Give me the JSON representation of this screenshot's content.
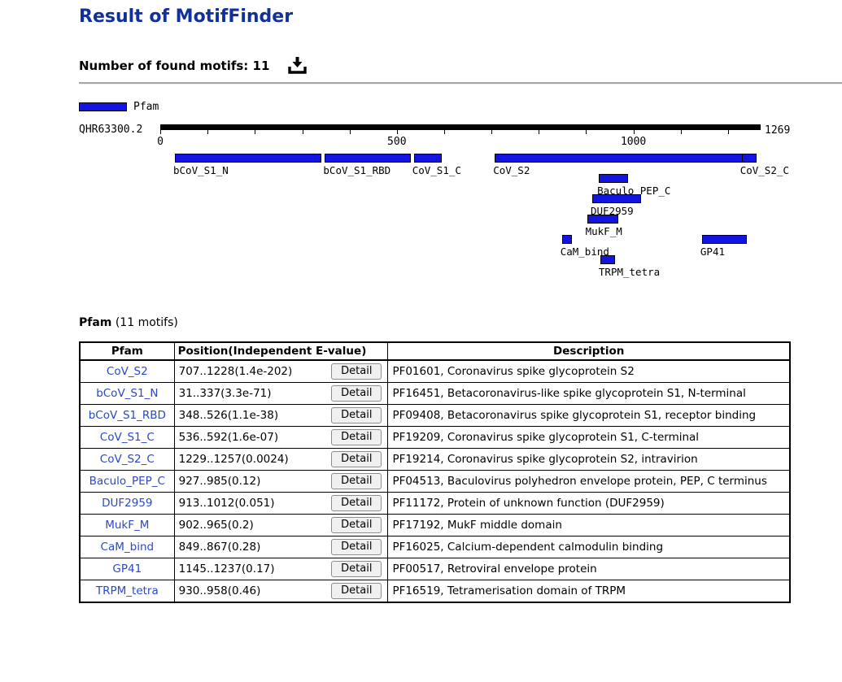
{
  "page": {
    "title": "Result of MotifFinder",
    "found_motifs_label": "Number of found motifs: 11"
  },
  "legend": {
    "label": "Pfam"
  },
  "diagram": {
    "sequence_name": "QHR63300.2",
    "sequence_length": 1269,
    "tick_interval": 100,
    "axis_labels": [
      {
        "value": 0,
        "text": "0"
      },
      {
        "value": 500,
        "text": "500"
      },
      {
        "value": 1000,
        "text": "1000"
      }
    ],
    "end_label": "1269",
    "bar_color": "#1414e0",
    "motifs": [
      {
        "label": "bCoV_S1_N",
        "start": 31,
        "end": 337,
        "row": 0
      },
      {
        "label": "bCoV_S1_RBD",
        "start": 348,
        "end": 526,
        "row": 0
      },
      {
        "label": "CoV_S1_C",
        "start": 536,
        "end": 592,
        "row": 0
      },
      {
        "label": "CoV_S2",
        "start": 707,
        "end": 1228,
        "row": 0
      },
      {
        "label": "CoV_S2_C",
        "start": 1229,
        "end": 1257,
        "row": 0
      },
      {
        "label": "Baculo_PEP_C",
        "start": 927,
        "end": 985,
        "row": 1
      },
      {
        "label": "DUF2959",
        "start": 913,
        "end": 1012,
        "row": 2
      },
      {
        "label": "MukF_M",
        "start": 902,
        "end": 965,
        "row": 3
      },
      {
        "label": "CaM_bind",
        "start": 849,
        "end": 867,
        "row": 4
      },
      {
        "label": "GP41",
        "start": 1145,
        "end": 1237,
        "row": 4
      },
      {
        "label": "TRPM_tetra",
        "start": 930,
        "end": 958,
        "row": 5
      }
    ]
  },
  "section": {
    "title": "Pfam",
    "subtitle": "(11 motifs)"
  },
  "table": {
    "headers": [
      "Pfam",
      "Position(Independent E-value)",
      "Description"
    ],
    "detail_label": "Detail",
    "rows": [
      {
        "pfam": "CoV_S2",
        "position": "707..1228(1.4e-202)",
        "description": "PF01601, Coronavirus spike glycoprotein S2"
      },
      {
        "pfam": "bCoV_S1_N",
        "position": "31..337(3.3e-71)",
        "description": "PF16451, Betacoronavirus-like spike glycoprotein S1, N-terminal"
      },
      {
        "pfam": "bCoV_S1_RBD",
        "position": "348..526(1.1e-38)",
        "description": "PF09408, Betacoronavirus spike glycoprotein S1, receptor binding"
      },
      {
        "pfam": "CoV_S1_C",
        "position": "536..592(1.6e-07)",
        "description": "PF19209, Coronavirus spike glycoprotein S1, C-terminal"
      },
      {
        "pfam": "CoV_S2_C",
        "position": "1229..1257(0.0024)",
        "description": "PF19214, Coronavirus spike glycoprotein S2, intravirion"
      },
      {
        "pfam": "Baculo_PEP_C",
        "position": "927..985(0.12)",
        "description": "PF04513, Baculovirus polyhedron envelope protein, PEP, C terminus"
      },
      {
        "pfam": "DUF2959",
        "position": "913..1012(0.051)",
        "description": "PF11172, Protein of unknown function (DUF2959)"
      },
      {
        "pfam": "MukF_M",
        "position": "902..965(0.2)",
        "description": "PF17192, MukF middle domain"
      },
      {
        "pfam": "CaM_bind",
        "position": "849..867(0.28)",
        "description": "PF16025, Calcium-dependent calmodulin binding"
      },
      {
        "pfam": "GP41",
        "position": "1145..1237(0.17)",
        "description": "PF00517, Retroviral envelope protein"
      },
      {
        "pfam": "TRPM_tetra",
        "position": "930..958(0.46)",
        "description": "PF16519, Tetramerisation domain of TRPM"
      }
    ]
  },
  "colors": {
    "title": "#10309c",
    "link": "#2b49c6",
    "motif_bar": "#1414e0",
    "axis": "#000000"
  }
}
